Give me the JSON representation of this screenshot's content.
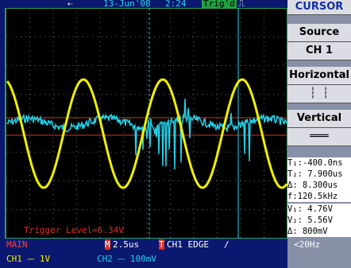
{
  "top": {
    "date": "13-Jun'08",
    "time": "2:24",
    "trigger_status": "Trig'd"
  },
  "menu": {
    "title": "CURSOR",
    "items": [
      "Source",
      "CH 1",
      "Horizontal",
      "Vertical"
    ]
  },
  "readouts": [
    "T₁:-400.0ns",
    "T₂: 7.900us",
    "Δ: 8.300us",
    "f:120.5kHz",
    "V₁: 4.76V",
    "V₂: 5.56V",
    "Δ: 800mV"
  ],
  "screen": {
    "trigger_level": "Trigger Level=6.34V"
  },
  "bottom": {
    "mode": "MAIN",
    "timebase_badge": "M",
    "timebase": "2.5us",
    "trigger_badge": "T",
    "trigger": "CH1 EDGE",
    "slope": "/",
    "frequency": "<20Hz",
    "ch1": "CH1 ⎓ 1V",
    "ch2": "CH2 ⎓ 100mV"
  }
}
